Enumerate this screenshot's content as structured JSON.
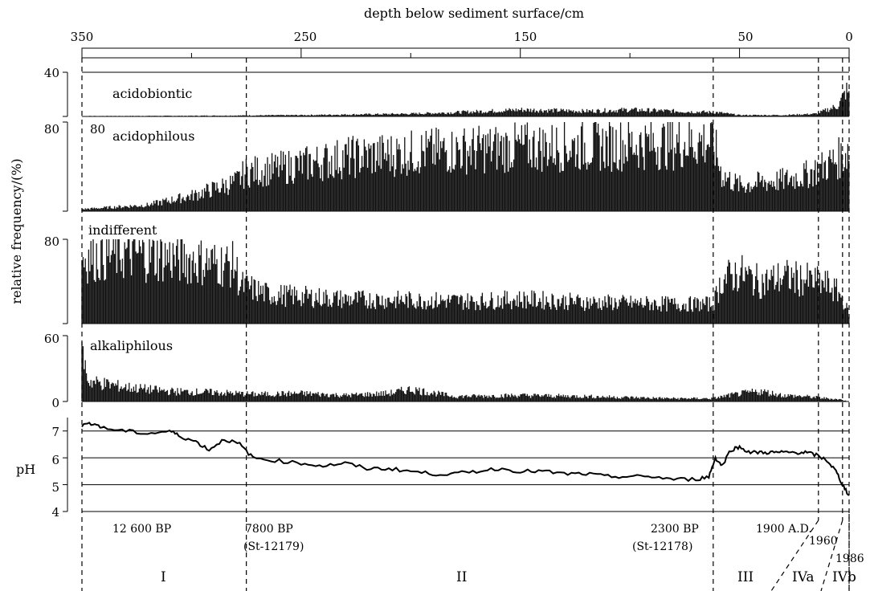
{
  "chart_data": {
    "type": "bar",
    "top_axis": {
      "label": "depth below sediment surface/cm",
      "ticks": [
        350,
        250,
        150,
        50,
        0
      ],
      "range": [
        350,
        0
      ]
    },
    "y_axis_label": "relative frequency/(%)",
    "panels": [
      {
        "name": "acidobiontic",
        "ytick": "40",
        "ylim": [
          0,
          40
        ],
        "profile": [
          [
            350,
            0.3
          ],
          [
            300,
            0.5
          ],
          [
            250,
            1
          ],
          [
            200,
            2
          ],
          [
            180,
            3
          ],
          [
            150,
            5
          ],
          [
            120,
            4
          ],
          [
            100,
            5
          ],
          [
            80,
            4
          ],
          [
            60,
            3
          ],
          [
            50,
            1
          ],
          [
            30,
            1
          ],
          [
            15,
            2
          ],
          [
            5,
            8
          ],
          [
            1,
            20
          ],
          [
            0,
            15
          ]
        ]
      },
      {
        "name": "acidophilous",
        "ytick": "80",
        "ylim": [
          0,
          80
        ],
        "profile": [
          [
            350,
            2
          ],
          [
            320,
            6
          ],
          [
            300,
            15
          ],
          [
            280,
            28
          ],
          [
            275,
            38
          ],
          [
            265,
            40
          ],
          [
            250,
            45
          ],
          [
            230,
            52
          ],
          [
            210,
            55
          ],
          [
            190,
            58
          ],
          [
            170,
            60
          ],
          [
            150,
            62
          ],
          [
            120,
            63
          ],
          [
            100,
            65
          ],
          [
            80,
            66
          ],
          [
            62,
            68
          ],
          [
            58,
            35
          ],
          [
            50,
            25
          ],
          [
            40,
            28
          ],
          [
            30,
            30
          ],
          [
            20,
            35
          ],
          [
            10,
            45
          ],
          [
            4,
            52
          ],
          [
            0,
            60
          ]
        ]
      },
      {
        "name": "indifferent",
        "ytick": "80",
        "ylim": [
          0,
          80
        ],
        "profile": [
          [
            350,
            68
          ],
          [
            330,
            72
          ],
          [
            310,
            68
          ],
          [
            290,
            62
          ],
          [
            280,
            60
          ],
          [
            278,
            40
          ],
          [
            265,
            30
          ],
          [
            250,
            28
          ],
          [
            230,
            25
          ],
          [
            200,
            24
          ],
          [
            170,
            23
          ],
          [
            150,
            25
          ],
          [
            120,
            22
          ],
          [
            100,
            21
          ],
          [
            80,
            20
          ],
          [
            62,
            20
          ],
          [
            58,
            45
          ],
          [
            50,
            52
          ],
          [
            40,
            42
          ],
          [
            30,
            48
          ],
          [
            20,
            45
          ],
          [
            10,
            40
          ],
          [
            4,
            30
          ],
          [
            0,
            10
          ]
        ]
      },
      {
        "name": "alkaliphilous",
        "ytick": "60",
        "ytick0": "0",
        "ylim": [
          0,
          60
        ],
        "profile": [
          [
            350,
            50
          ],
          [
            347,
            20
          ],
          [
            330,
            14
          ],
          [
            310,
            10
          ],
          [
            290,
            9
          ],
          [
            270,
            7
          ],
          [
            250,
            8
          ],
          [
            230,
            6
          ],
          [
            210,
            8
          ],
          [
            200,
            12
          ],
          [
            180,
            5
          ],
          [
            150,
            6
          ],
          [
            120,
            5
          ],
          [
            100,
            4
          ],
          [
            80,
            3
          ],
          [
            62,
            3
          ],
          [
            55,
            6
          ],
          [
            45,
            9
          ],
          [
            40,
            10
          ],
          [
            30,
            6
          ],
          [
            20,
            5
          ],
          [
            10,
            3
          ],
          [
            4,
            2
          ],
          [
            0,
            0
          ]
        ]
      }
    ],
    "ph_panel": {
      "label": "pH",
      "ticks": [
        "7",
        "6",
        "5",
        "4"
      ],
      "ylim": [
        4,
        7.5
      ],
      "series": [
        [
          350,
          7.2
        ],
        [
          345,
          7.3
        ],
        [
          340,
          7.1
        ],
        [
          330,
          7.0
        ],
        [
          320,
          6.9
        ],
        [
          310,
          7.0
        ],
        [
          305,
          6.8
        ],
        [
          298,
          6.6
        ],
        [
          292,
          6.3
        ],
        [
          285,
          6.7
        ],
        [
          278,
          6.5
        ],
        [
          272,
          6.0
        ],
        [
          262,
          5.9
        ],
        [
          250,
          5.8
        ],
        [
          240,
          5.7
        ],
        [
          230,
          5.8
        ],
        [
          220,
          5.6
        ],
        [
          210,
          5.6
        ],
        [
          200,
          5.5
        ],
        [
          190,
          5.4
        ],
        [
          180,
          5.4
        ],
        [
          170,
          5.5
        ],
        [
          160,
          5.6
        ],
        [
          150,
          5.5
        ],
        [
          140,
          5.5
        ],
        [
          130,
          5.4
        ],
        [
          120,
          5.4
        ],
        [
          110,
          5.3
        ],
        [
          100,
          5.3
        ],
        [
          90,
          5.3
        ],
        [
          80,
          5.2
        ],
        [
          70,
          5.2
        ],
        [
          64,
          5.3
        ],
        [
          61,
          6.0
        ],
        [
          58,
          5.7
        ],
        [
          54,
          6.3
        ],
        [
          50,
          6.4
        ],
        [
          45,
          6.2
        ],
        [
          40,
          6.2
        ],
        [
          35,
          6.2
        ],
        [
          30,
          6.2
        ],
        [
          25,
          6.2
        ],
        [
          20,
          6.2
        ],
        [
          15,
          6.1
        ],
        [
          10,
          5.9
        ],
        [
          6,
          5.5
        ],
        [
          3,
          5.0
        ],
        [
          0,
          4.6
        ]
      ]
    },
    "boundaries": [
      350,
      275,
      62,
      14,
      3,
      0
    ],
    "dates": [
      {
        "line1": "12 600 BP",
        "line2": ""
      },
      {
        "line1": "7800 BP",
        "line2": "(St-12179)"
      },
      {
        "line1": "2300 BP",
        "line2": "(St-12178)"
      },
      {
        "line1": "1900 A.D.",
        "line2": ""
      },
      {
        "line1": "1960",
        "line2": ""
      },
      {
        "line1": "1986",
        "line2": ""
      }
    ],
    "zones": [
      "I",
      "II",
      "III",
      "IVa",
      "IVb"
    ]
  }
}
